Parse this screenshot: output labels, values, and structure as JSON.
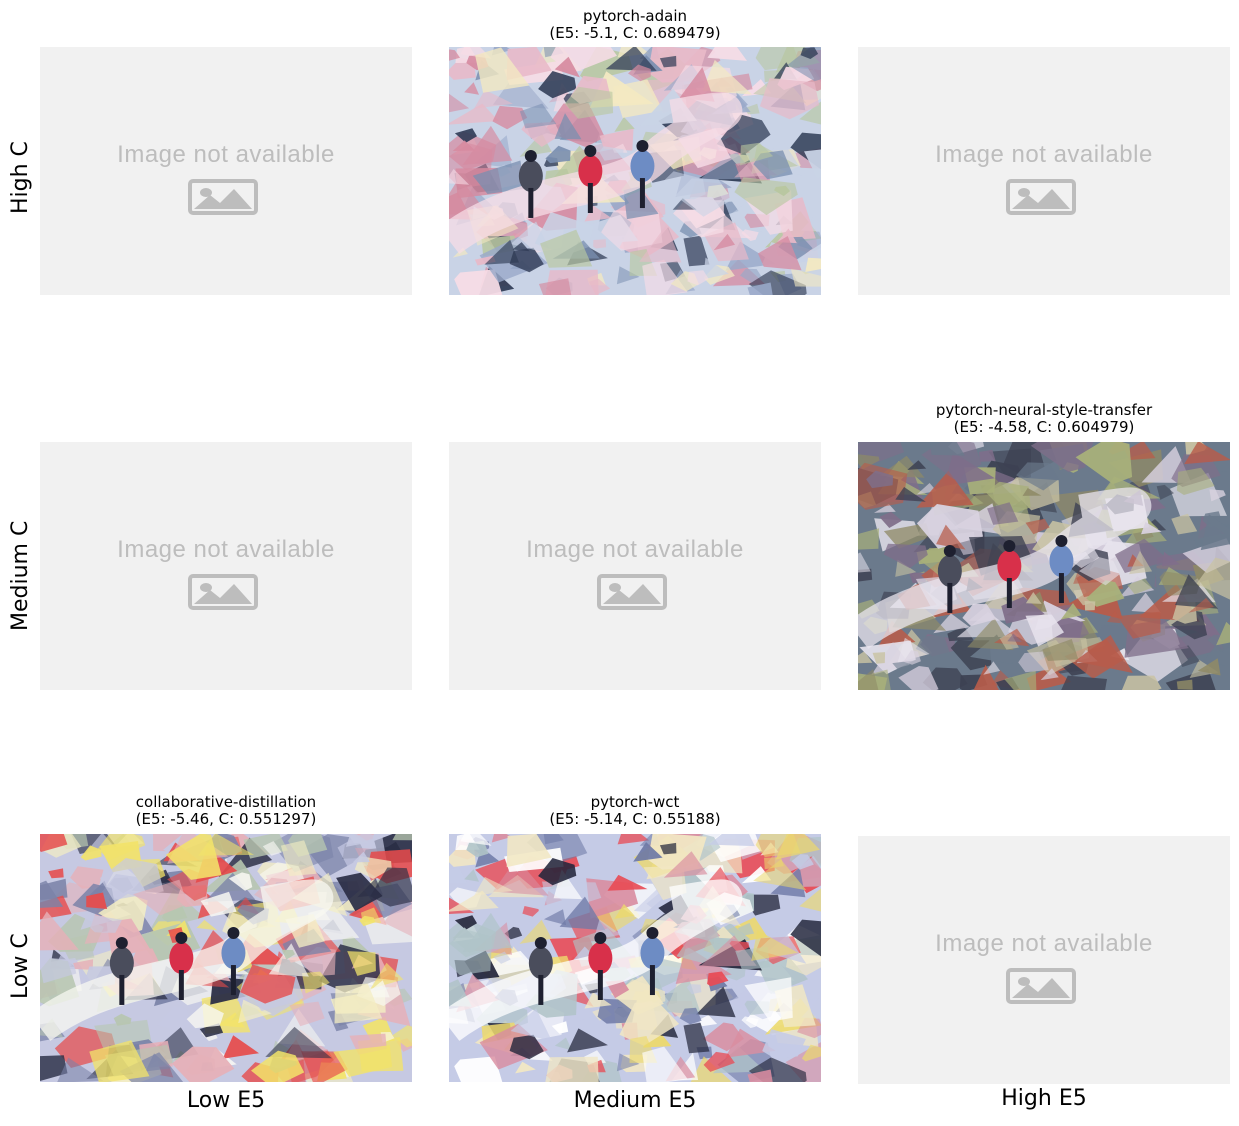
{
  "grid": {
    "rows": [
      {
        "label": "High C",
        "cells": [
          {
            "type": "placeholder",
            "text": "Image not available"
          },
          {
            "type": "image",
            "method": "pytorch-adain",
            "scores": "(E5: -5.1, C: 0.689479)",
            "palette": "pastel"
          },
          {
            "type": "placeholder",
            "text": "Image not available"
          }
        ]
      },
      {
        "label": "Medium C",
        "cells": [
          {
            "type": "placeholder",
            "text": "Image not available"
          },
          {
            "type": "placeholder",
            "text": "Image not available"
          },
          {
            "type": "image",
            "method": "pytorch-neural-style-transfer",
            "scores": "(E5: -4.58, C: 0.604979)",
            "palette": "muted"
          }
        ]
      },
      {
        "label": "Low C",
        "cells": [
          {
            "type": "image",
            "method": "collaborative-distillation",
            "scores": "(E5: -5.46, C: 0.551297)",
            "palette": "bright"
          },
          {
            "type": "image",
            "method": "pytorch-wct",
            "scores": "(E5: -5.14, C: 0.55188)",
            "palette": "vivid"
          },
          {
            "type": "placeholder",
            "text": "Image not available"
          }
        ]
      }
    ],
    "columns": [
      "Low E5",
      "Medium E5",
      "High E5"
    ]
  },
  "colors": {
    "placeholder_bg": "#f1f1f1",
    "placeholder_fg": "#bdbdbd"
  },
  "icons": [
    "image-placeholder-icon"
  ]
}
